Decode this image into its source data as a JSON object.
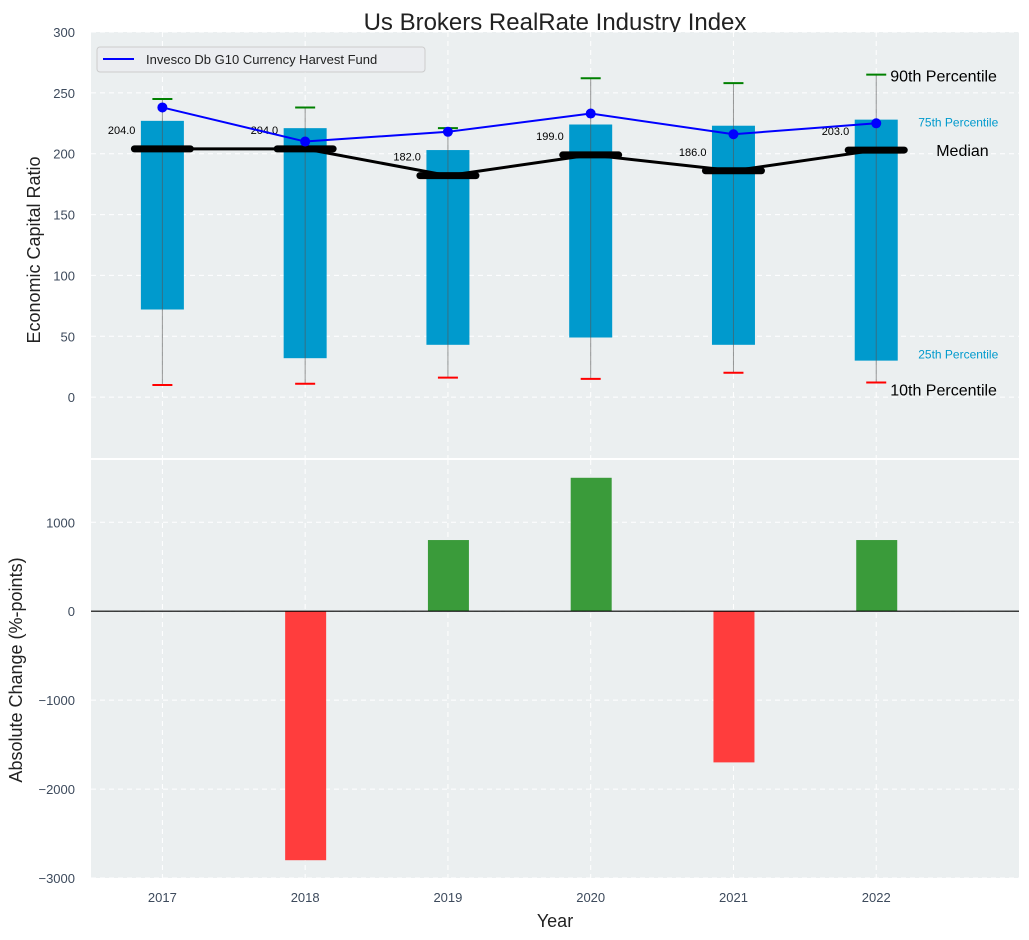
{
  "chart_data": [
    {
      "type": "bar",
      "title": "Us Brokers RealRate Industry Index",
      "ylabel": "Economic Capital Ratio",
      "xlabel": "",
      "ylim": [
        -50,
        300
      ],
      "yticks": [
        "0",
        "50",
        "100",
        "150",
        "200",
        "250",
        "300"
      ],
      "categories": [
        "2017",
        "2018",
        "2019",
        "2020",
        "2021",
        "2022"
      ],
      "p10": [
        10,
        11,
        16,
        15,
        20,
        12
      ],
      "p25": [
        72,
        32,
        43,
        49,
        43,
        30
      ],
      "median": [
        204,
        204,
        182,
        199,
        186,
        203
      ],
      "median_labels": [
        "204.0",
        "204.0",
        "182.0",
        "199.0",
        "186.0",
        "203.0"
      ],
      "p75": [
        227,
        221,
        203,
        224,
        223,
        228
      ],
      "p90": [
        245,
        238,
        221,
        262,
        258,
        265
      ],
      "series": [
        {
          "name": "Invesco Db G10 Currency Harvest Fund",
          "values": [
            238,
            210,
            218,
            233,
            216,
            225
          ]
        }
      ],
      "legend": "top-left",
      "annotations": {
        "p90": "90th Percentile",
        "p75": "75th Percentile",
        "median": "Median",
        "p25": "25th Percentile",
        "p10": "10th Percentile"
      },
      "colors": {
        "box": "#009ACD",
        "fund": "#0000FF",
        "median": "#000000",
        "p90": "#008000",
        "p10": "#FF0000",
        "bg": "#EBEFF0"
      },
      "grid": true
    },
    {
      "type": "bar",
      "ylabel": "Absolute Change (%-points)",
      "xlabel": "Year",
      "ylim": [
        -3000,
        1700
      ],
      "yticks": [
        "−3000",
        "−2000",
        "−1000",
        "0",
        "1000"
      ],
      "categories": [
        "2017",
        "2018",
        "2019",
        "2020",
        "2021",
        "2022"
      ],
      "values": [
        0,
        -2800,
        800,
        1500,
        -1700,
        800
      ],
      "colors": {
        "positive": "#3A9B3A",
        "negative": "#FF3D3D"
      },
      "grid": true
    }
  ]
}
